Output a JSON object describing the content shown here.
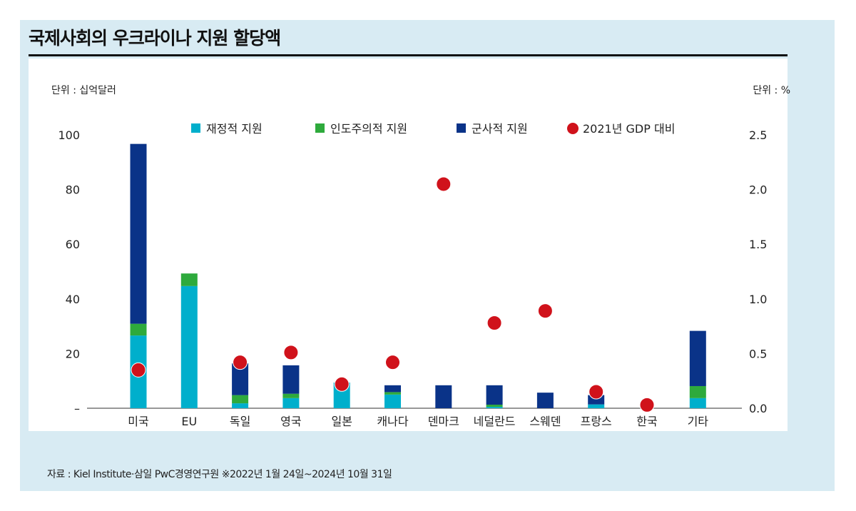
{
  "title": "국제사회의 우크라이나 지원 할당액",
  "unit_left": "단위 : 십억달러",
  "unit_right": "단위 : %",
  "source": "자료 : Kiel Institute·삼일 PwC경영연구원 ※2022년 1월 24일~2024년 10월 31일",
  "chart_data": {
    "type": "bar",
    "stacked": true,
    "categories": [
      "미국",
      "EU",
      "독일",
      "영국",
      "일본",
      "캐나다",
      "덴마크",
      "네덜란드",
      "스웨덴",
      "프랑스",
      "한국",
      "기타"
    ],
    "series": [
      {
        "name": "재정적 지원",
        "color": "#00afcc",
        "values": [
          26.6,
          44.7,
          1.8,
          3.7,
          9.4,
          5.0,
          0,
          0.5,
          0,
          1.4,
          0,
          3.7
        ]
      },
      {
        "name": "인도주의적 지원",
        "color": "#2eaa3c",
        "values": [
          4.3,
          4.6,
          3.0,
          1.6,
          0,
          0.9,
          0,
          0.8,
          0,
          0,
          0,
          4.4
        ]
      },
      {
        "name": "군사적 지원",
        "color": "#0a3388",
        "values": [
          65.8,
          0,
          11.6,
          10.4,
          0,
          2.5,
          8.4,
          7.1,
          5.7,
          3.4,
          0,
          20.2
        ]
      }
    ],
    "secondary_series": {
      "name": "2021년 GDP 대비",
      "type": "scatter",
      "axis": "right",
      "color": "#d0121b",
      "values": [
        0.35,
        null,
        0.42,
        0.51,
        0.22,
        0.42,
        2.05,
        0.78,
        0.89,
        0.15,
        0.03,
        null
      ]
    },
    "ylim": [
      0,
      100
    ],
    "yticks": [
      "–",
      "20",
      "40",
      "60",
      "80",
      "100"
    ],
    "y2lim": [
      0,
      2.5
    ],
    "y2ticks": [
      "0.0",
      "0.5",
      "1.0",
      "1.5",
      "2.0",
      "2.5"
    ],
    "legend_position": "top",
    "grid": false
  }
}
